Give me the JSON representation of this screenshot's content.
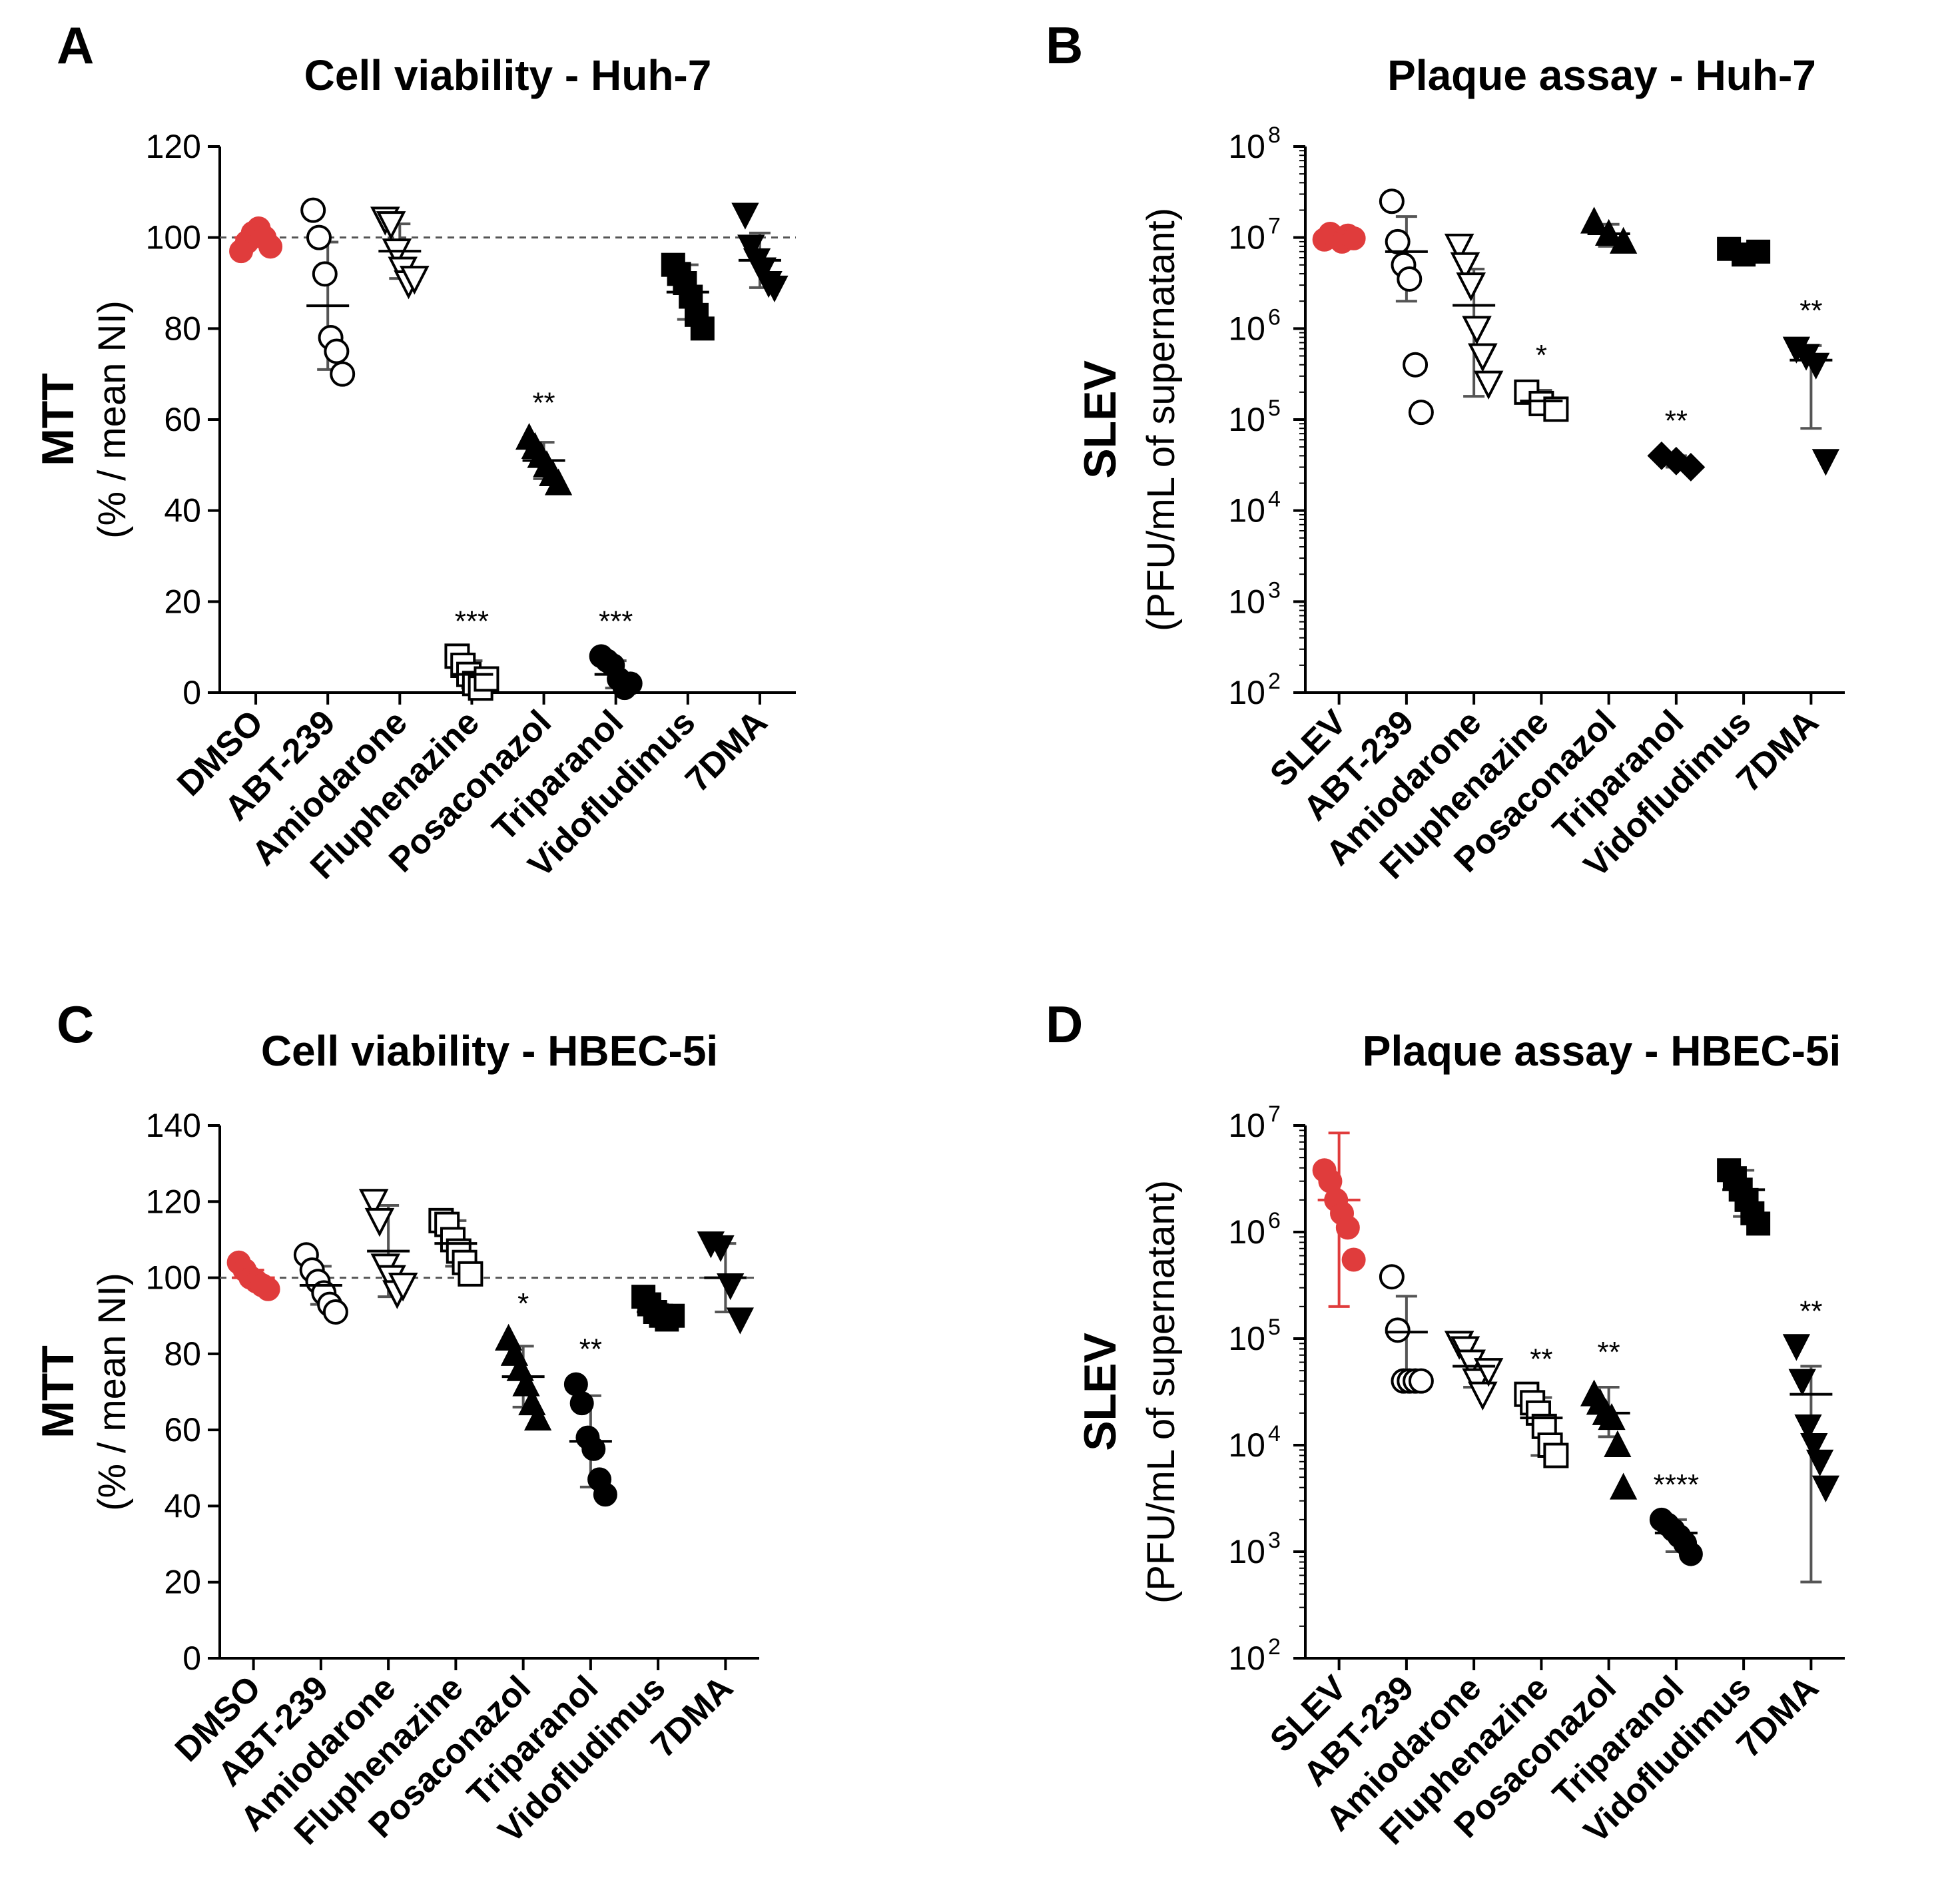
{
  "figure": {
    "panel_letters": [
      "A",
      "B",
      "C",
      "D"
    ]
  },
  "chart_data": [
    {
      "panel": "A",
      "type": "scatter",
      "title": "Cell viability - Huh-7",
      "ylabel_main": "MTT",
      "ylabel_sub": "(% / mean NI)",
      "xlabel": "",
      "scale": "linear",
      "ylim": [
        0,
        120
      ],
      "yticks": [
        0,
        20,
        40,
        60,
        80,
        100,
        120
      ],
      "ytick_labels": [
        "0",
        "20",
        "40",
        "60",
        "80",
        "100",
        "120"
      ],
      "reference_line": 100,
      "categories": [
        "DMSO",
        "ABT-239",
        "Amiodarone",
        "Fluphenazine",
        "Posaconazol",
        "Triparanol",
        "Vidofludimus",
        "7DMA"
      ],
      "markers": [
        "circle-filled-red",
        "circle-open",
        "triangle-down-open",
        "square-open",
        "triangle-up-filled",
        "circle-filled",
        "square-filled",
        "triangle-down-filled"
      ],
      "series": [
        {
          "name": "DMSO",
          "values": [
            97,
            99,
            101,
            102,
            100,
            98
          ],
          "mean": 100,
          "sd": 2
        },
        {
          "name": "ABT-239",
          "values": [
            106,
            100,
            92,
            78,
            75,
            70
          ],
          "mean": 85,
          "sd": 14
        },
        {
          "name": "Amiodarone",
          "values": [
            104,
            103,
            97,
            93,
            90,
            91
          ],
          "mean": 97,
          "sd": 6
        },
        {
          "name": "Fluphenazine",
          "values": [
            8,
            6,
            4,
            2,
            1,
            3
          ],
          "mean": 4,
          "sd": 3
        },
        {
          "name": "Posaconazol",
          "values": [
            56,
            54,
            52,
            50,
            48,
            46
          ],
          "mean": 51,
          "sd": 4
        },
        {
          "name": "Triparanol",
          "values": [
            8,
            7,
            6,
            3,
            1,
            2
          ],
          "mean": 4,
          "sd": 3
        },
        {
          "name": "Vidofludimus",
          "values": [
            94,
            92,
            90,
            87,
            83,
            80
          ],
          "mean": 88,
          "sd": 6
        },
        {
          "name": "7DMA",
          "values": [
            105,
            98,
            95,
            93,
            90,
            89
          ],
          "mean": 95,
          "sd": 6
        }
      ],
      "annotations": [
        "",
        "",
        "",
        "***",
        "**",
        "***",
        "",
        ""
      ]
    },
    {
      "panel": "B",
      "type": "scatter",
      "title": "Plaque assay - Huh-7",
      "ylabel_main": "SLEV",
      "ylabel_sub": "(PFU/mL of supernatant)",
      "xlabel": "",
      "scale": "log10",
      "ylim": [
        100,
        100000000
      ],
      "yticks": [
        100,
        1000,
        10000,
        100000,
        1000000,
        10000000,
        100000000
      ],
      "ytick_labels": [
        "10",
        "10",
        "10",
        "10",
        "10",
        "10",
        "10"
      ],
      "ytick_exponents": [
        "2",
        "3",
        "4",
        "5",
        "6",
        "7",
        "8"
      ],
      "categories": [
        "SLEV",
        "ABT-239",
        "Amiodarone",
        "Fluphenazine",
        "Posaconazol",
        "Triparanol",
        "Vidofludimus",
        "7DMA"
      ],
      "markers": [
        "circle-filled-red",
        "circle-open",
        "triangle-down-open",
        "square-open",
        "triangle-up-filled",
        "diamond-filled",
        "square-filled",
        "triangle-down-filled"
      ],
      "series": [
        {
          "name": "SLEV",
          "values": [
            9500000,
            11000000,
            10000000,
            9000000,
            10500000,
            9800000
          ],
          "mean": 10000000,
          "sd_low": 8500000,
          "sd_high": 11500000
        },
        {
          "name": "ABT-239",
          "values": [
            25000000,
            9000000,
            5000000,
            3500000,
            400000,
            120000
          ],
          "mean": 7000000,
          "sd_low": 2000000,
          "sd_high": 17000000
        },
        {
          "name": "Amiodarone",
          "values": [
            8000000,
            5000000,
            3000000,
            1000000,
            500000,
            250000
          ],
          "mean": 1800000,
          "sd_low": 180000,
          "sd_high": 4500000
        },
        {
          "name": "Fluphenazine",
          "values": [
            200000,
            150000,
            130000
          ],
          "mean": 160000,
          "sd_low": 120000,
          "sd_high": 210000
        },
        {
          "name": "Posaconazol",
          "values": [
            15000000,
            11000000,
            9000000
          ],
          "mean": 11000000,
          "sd_low": 8000000,
          "sd_high": 14000000
        },
        {
          "name": "Triparanol",
          "values": [
            40000,
            35000,
            30000
          ],
          "mean": 35000,
          "sd_low": 30000,
          "sd_high": 40000
        },
        {
          "name": "Vidofludimus",
          "values": [
            7500000,
            6500000,
            7000000
          ],
          "mean": 7000000,
          "sd_low": 6000000,
          "sd_high": 8000000
        },
        {
          "name": "7DMA",
          "values": [
            600000,
            500000,
            400000,
            35000
          ],
          "mean": 450000,
          "sd_low": 80000,
          "sd_high": 650000
        }
      ],
      "annotations": [
        "",
        "",
        "",
        "*",
        "",
        "**",
        "",
        "**"
      ]
    },
    {
      "panel": "C",
      "type": "scatter",
      "title": "Cell viability - HBEC-5i",
      "ylabel_main": "MTT",
      "ylabel_sub": "(% / mean NI)",
      "xlabel": "",
      "scale": "linear",
      "ylim": [
        0,
        140
      ],
      "yticks": [
        0,
        20,
        40,
        60,
        80,
        100,
        120,
        140
      ],
      "ytick_labels": [
        "0",
        "20",
        "40",
        "60",
        "80",
        "100",
        "120",
        "140"
      ],
      "reference_line": 100,
      "categories": [
        "DMSO",
        "ABT-239",
        "Amiodarone",
        "Fluphenazine",
        "Posaconazol",
        "Triparanol",
        "Vidofludimus",
        "7DMA"
      ],
      "markers": [
        "circle-filled-red",
        "circle-open",
        "triangle-down-open",
        "square-open",
        "triangle-up-filled",
        "circle-filled",
        "square-filled",
        "triangle-down-filled"
      ],
      "series": [
        {
          "name": "DMSO",
          "values": [
            104,
            102,
            100,
            99,
            98,
            97
          ],
          "mean": 100,
          "sd": 2
        },
        {
          "name": "ABT-239",
          "values": [
            106,
            102,
            99,
            96,
            93,
            91
          ],
          "mean": 98,
          "sd": 5
        },
        {
          "name": "Amiodarone",
          "values": [
            120,
            115,
            103,
            100,
            96,
            98
          ],
          "mean": 107,
          "sd": 12
        },
        {
          "name": "Fluphenazine",
          "values": [
            115,
            114,
            110,
            107,
            104,
            101
          ],
          "mean": 109,
          "sd": 6
        },
        {
          "name": "Posaconazol",
          "values": [
            84,
            80,
            76,
            72,
            67,
            63
          ],
          "mean": 74,
          "sd": 8
        },
        {
          "name": "Triparanol",
          "values": [
            72,
            67,
            58,
            55,
            47,
            43
          ],
          "mean": 57,
          "sd": 12
        },
        {
          "name": "Vidofludimus",
          "values": [
            95,
            93,
            91,
            90,
            89,
            90
          ],
          "mean": 91,
          "sd": 2
        },
        {
          "name": "7DMA",
          "values": [
            109,
            108,
            98,
            89
          ],
          "mean": 100,
          "sd": 9
        }
      ],
      "annotations": [
        "",
        "",
        "",
        "",
        "*",
        "**",
        "",
        ""
      ]
    },
    {
      "panel": "D",
      "type": "scatter",
      "title": "Plaque assay - HBEC-5i",
      "ylabel_main": "SLEV",
      "ylabel_sub": "(PFU/mL of supernatant)",
      "xlabel": "",
      "scale": "log10",
      "ylim": [
        100,
        10000000
      ],
      "yticks": [
        100,
        1000,
        10000,
        100000,
        1000000,
        10000000
      ],
      "ytick_labels": [
        "10",
        "10",
        "10",
        "10",
        "10",
        "10"
      ],
      "ytick_exponents": [
        "2",
        "3",
        "4",
        "5",
        "6",
        "7"
      ],
      "categories": [
        "SLEV",
        "ABT-239",
        "Amiodarone",
        "Fluphenazine",
        "Posaconazol",
        "Triparanol",
        "Vidofludimus",
        "7DMA"
      ],
      "markers": [
        "circle-filled-red",
        "circle-open",
        "triangle-down-open",
        "square-open",
        "triangle-up-filled",
        "circle-filled",
        "square-filled",
        "triangle-down-filled"
      ],
      "series": [
        {
          "name": "SLEV",
          "values": [
            3800000,
            3000000,
            2000000,
            1500000,
            1100000,
            550000
          ],
          "mean": 2000000,
          "sd_low": 200000,
          "sd_high": 8500000
        },
        {
          "name": "ABT-239",
          "values": [
            380000,
            120000,
            40000,
            40000,
            40000,
            40000
          ],
          "mean": 115000,
          "sd_low": 40000,
          "sd_high": 250000
        },
        {
          "name": "Amiodarone",
          "values": [
            90000,
            80000,
            60000,
            40000,
            30000,
            50000
          ],
          "mean": 55000,
          "sd_low": 35000,
          "sd_high": 75000
        },
        {
          "name": "Fluphenazine",
          "values": [
            30000,
            25000,
            20000,
            15000,
            10000,
            8000
          ],
          "mean": 18000,
          "sd_low": 8000,
          "sd_high": 28000
        },
        {
          "name": "Posaconazol",
          "values": [
            30000,
            25000,
            20000,
            18000,
            10000,
            4000
          ],
          "mean": 20000,
          "sd_low": 12000,
          "sd_high": 35000
        },
        {
          "name": "Triparanol",
          "values": [
            2000,
            1800,
            1600,
            1400,
            1200,
            950
          ],
          "mean": 1500,
          "sd_low": 1000,
          "sd_high": 2000
        },
        {
          "name": "Vidofludimus",
          "values": [
            3800000,
            3200000,
            2500000,
            2000000,
            1500000,
            1200000
          ],
          "mean": 2500000,
          "sd_low": 1400000,
          "sd_high": 3800000
        },
        {
          "name": "7DMA",
          "values": [
            85000,
            40000,
            15000,
            10000,
            7000,
            4000
          ],
          "mean": 30000,
          "sd_low": 520,
          "sd_high": 55000
        }
      ],
      "annotations": [
        "",
        "",
        "",
        "**",
        "**",
        "****",
        "",
        "**"
      ]
    }
  ]
}
